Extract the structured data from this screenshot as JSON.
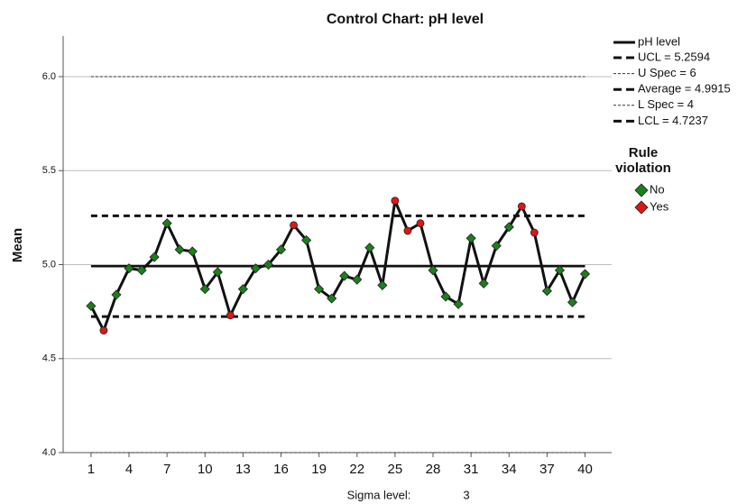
{
  "chart_data": {
    "type": "control",
    "title": "Control Chart: pH level",
    "ylabel": "Mean",
    "x": [
      1,
      2,
      3,
      4,
      5,
      6,
      7,
      8,
      9,
      10,
      11,
      12,
      13,
      14,
      15,
      16,
      17,
      18,
      19,
      20,
      21,
      22,
      23,
      24,
      25,
      26,
      27,
      28,
      29,
      30,
      31,
      32,
      33,
      34,
      35,
      36,
      37,
      38,
      39,
      40
    ],
    "xlim": [
      -1.2,
      42.1
    ],
    "xticks": [
      1,
      4,
      7,
      10,
      13,
      16,
      19,
      22,
      25,
      28,
      31,
      34,
      37,
      40
    ],
    "ylim": [
      4.0,
      6.2
    ],
    "yticks": [
      {
        "value": 6.0,
        "label": "6.0"
      },
      {
        "value": 5.5,
        "label": "5.5"
      },
      {
        "value": 5.0,
        "label": "5.0"
      },
      {
        "value": 4.5,
        "label": "4.5"
      },
      {
        "value": 4.0,
        "label": "4.0"
      }
    ],
    "grid": true,
    "series": [
      {
        "name": "pH level",
        "color": "#111111",
        "values": [
          4.78,
          4.65,
          4.84,
          4.98,
          4.97,
          5.04,
          5.22,
          5.08,
          5.07,
          4.87,
          4.96,
          4.73,
          4.87,
          4.98,
          5.0,
          5.08,
          5.21,
          5.13,
          4.87,
          4.82,
          4.94,
          4.92,
          5.09,
          4.89,
          5.34,
          5.18,
          5.22,
          4.97,
          4.83,
          4.79,
          5.14,
          4.9,
          5.1,
          5.2,
          5.31,
          5.17,
          4.86,
          4.97,
          4.8,
          4.95
        ],
        "rule": [
          "No",
          "Yes",
          "No",
          "No",
          "No",
          "No",
          "No",
          "No",
          "No",
          "No",
          "No",
          "Yes",
          "No",
          "No",
          "No",
          "No",
          "Yes",
          "No",
          "No",
          "No",
          "No",
          "No",
          "No",
          "No",
          "Yes",
          "Yes",
          "Yes",
          "No",
          "No",
          "No",
          "No",
          "No",
          "No",
          "No",
          "Yes",
          "Yes",
          "No",
          "No",
          "No",
          "No"
        ]
      }
    ],
    "control_lines": [
      {
        "label": "UCL = 5.2594",
        "value": 5.2594,
        "style": "heavy-dash"
      },
      {
        "label": "U Spec = 6",
        "value": 6,
        "style": "thin-dash"
      },
      {
        "label": "Average = 4.9915",
        "value": 4.9915,
        "style": "heavy-solid"
      },
      {
        "label": "L Spec = 4",
        "value": 4,
        "style": "thin-dash"
      },
      {
        "label": "LCL = 4.7237",
        "value": 4.7237,
        "style": "heavy-dash"
      }
    ],
    "rule_legend": {
      "title": [
        "Rule",
        "violation"
      ],
      "items": [
        {
          "name": "No",
          "color": "#1b7f1b"
        },
        {
          "name": "Yes",
          "color": "#e31414"
        }
      ]
    },
    "sigma_level": {
      "label": "Sigma level:",
      "value": 3
    }
  }
}
